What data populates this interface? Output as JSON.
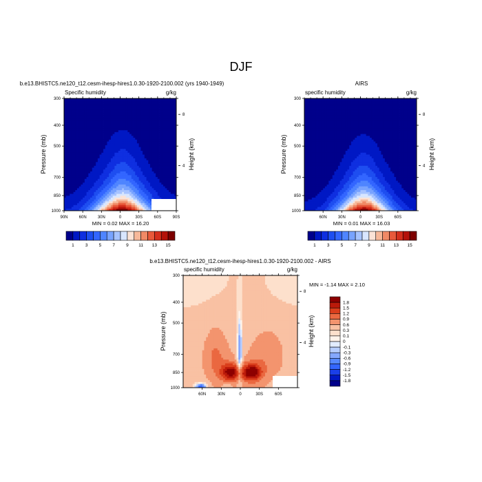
{
  "page_title": "DJF",
  "chart_data": [
    {
      "type": "heatmap",
      "id": "model",
      "title": "b.e13.BHISTC5.ne120_t12.cesm-ihesp-hires1.0.30-1920-2100.002 (yrs 1940-1949)",
      "left_label": "Specific humidity",
      "right_label": "g/kg",
      "xlabel": "",
      "ylabel": "Pressure (mb)",
      "y2label": "Height (km)",
      "x_ticks": [
        "90N",
        "60N",
        "30N",
        "0",
        "30S",
        "60S",
        "90S"
      ],
      "x_tick_values": [
        90,
        60,
        30,
        0,
        -30,
        -60,
        -90
      ],
      "y_ticks": [
        "300",
        "400",
        "500",
        "700",
        "850",
        "1000"
      ],
      "y_tick_values": [
        300,
        400,
        500,
        700,
        850,
        1000
      ],
      "y2_ticks": [
        "8",
        "4"
      ],
      "ylim": [
        300,
        1000
      ],
      "xlim": [
        90,
        -90
      ],
      "min_max": "MIN =  0.02  MAX =  16.20",
      "min": 0.02,
      "max": 16.2,
      "field": {
        "surface_peak_lat": -3,
        "surface_peak_value": 16.2,
        "surface_width": 32,
        "high_lat_surface_value": 1.8,
        "scale_height_mb": 190,
        "tropical_bulge_lat": -5,
        "tropical_bulge_value": 3.5,
        "tropical_bulge_width": 16,
        "tropical_bulge_top_mb": 380
      }
    },
    {
      "type": "heatmap",
      "id": "obs",
      "title": "AIRS",
      "left_label": "specific humidity",
      "right_label": "g/kg",
      "xlabel": "",
      "ylabel": "Pressure (mb)",
      "y2label": "Height (km)",
      "x_ticks": [
        "60N",
        "30N",
        "0",
        "30S",
        "60S"
      ],
      "x_tick_values": [
        60,
        30,
        0,
        -30,
        -60
      ],
      "y_ticks": [
        "300",
        "400",
        "500",
        "700",
        "850",
        "1000"
      ],
      "y_tick_values": [
        300,
        400,
        500,
        700,
        850,
        1000
      ],
      "y2_ticks": [
        "8",
        "4"
      ],
      "ylim": [
        300,
        1000
      ],
      "xlim": [
        90,
        -90
      ],
      "min_max": "MIN =  0.01  MAX =  16.03",
      "min": 0.01,
      "max": 16.03,
      "field": {
        "surface_peak_lat": -5,
        "surface_peak_value": 16.0,
        "surface_width": 30,
        "high_lat_surface_value": 1.6,
        "scale_height_mb": 185,
        "tropical_bulge_lat": -5,
        "tropical_bulge_value": 3.3,
        "tropical_bulge_width": 15,
        "tropical_bulge_top_mb": 400
      }
    },
    {
      "type": "heatmap",
      "id": "diff",
      "title": "b.e13.BHISTC5.ne120_t12.cesm-ihesp-hires1.0.30-1920-2100.002 - AIRS",
      "left_label": "specific humidity",
      "right_label": "g/kg",
      "xlabel": "",
      "ylabel": "Pressure (mb)",
      "y2label": "Height (km)",
      "x_ticks": [
        "60N",
        "30N",
        "0",
        "30S",
        "60S"
      ],
      "x_tick_values": [
        60,
        30,
        0,
        -30,
        -60
      ],
      "y_ticks": [
        "300",
        "400",
        "500",
        "700",
        "850",
        "1000"
      ],
      "y_tick_values": [
        300,
        400,
        500,
        700,
        850,
        1000
      ],
      "y2_ticks": [
        "8",
        "4"
      ],
      "ylim": [
        300,
        1000
      ],
      "xlim": [
        90,
        -90
      ],
      "min_max": "MIN = -1.14  MAX =  2.10",
      "min": -1.14,
      "max": 2.1,
      "field": {
        "max_1_lat": -18,
        "max_1_mb": 850,
        "max_1_value": 2.1,
        "max_2_lat": 15,
        "max_2_mb": 850,
        "max_2_value": 1.9,
        "negative_column_lat": 1,
        "negative_column_value": -0.6,
        "north_surface_negative_lat": 62,
        "north_surface_negative_value": -1.14
      }
    }
  ],
  "colorbars": {
    "upper": {
      "labels": [
        "1",
        "3",
        "5",
        "7",
        "9",
        "11",
        "13",
        "15"
      ],
      "levels": [
        1,
        2,
        3,
        4,
        5,
        6,
        7,
        8,
        9,
        10,
        11,
        12,
        13,
        14,
        15
      ],
      "colors": [
        "#00008b",
        "#0018c4",
        "#0f2fe0",
        "#1e4ef0",
        "#3366ff",
        "#4f85ff",
        "#78a3ff",
        "#a6c3ff",
        "#d8e6ff",
        "#fbe3d6",
        "#f7b899",
        "#f08a66",
        "#e8593a",
        "#d42f1c",
        "#b4120a",
        "#7d0000"
      ]
    },
    "diff": {
      "labels": [
        "1.8",
        "1.5",
        "1.2",
        "0.9",
        "0.6",
        "0.3",
        "0.1",
        "0",
        "-0.1",
        "-0.3",
        "-0.6",
        "-0.9",
        "-1.2",
        "-1.5",
        "-1.8"
      ],
      "levels": [
        -1.8,
        -1.5,
        -1.2,
        -0.9,
        -0.6,
        -0.3,
        -0.1,
        0,
        0.1,
        0.3,
        0.6,
        0.9,
        1.2,
        1.5,
        1.8
      ],
      "colors": [
        "#00008b",
        "#0018c4",
        "#1a3fe8",
        "#3366ff",
        "#5588ff",
        "#85a8ff",
        "#b6cdff",
        "#e2ecff",
        "#fff3ea",
        "#fde0cc",
        "#f9c1a3",
        "#f3946e",
        "#ea6840",
        "#da3e1c",
        "#bb1a0a",
        "#8d0000"
      ]
    }
  }
}
